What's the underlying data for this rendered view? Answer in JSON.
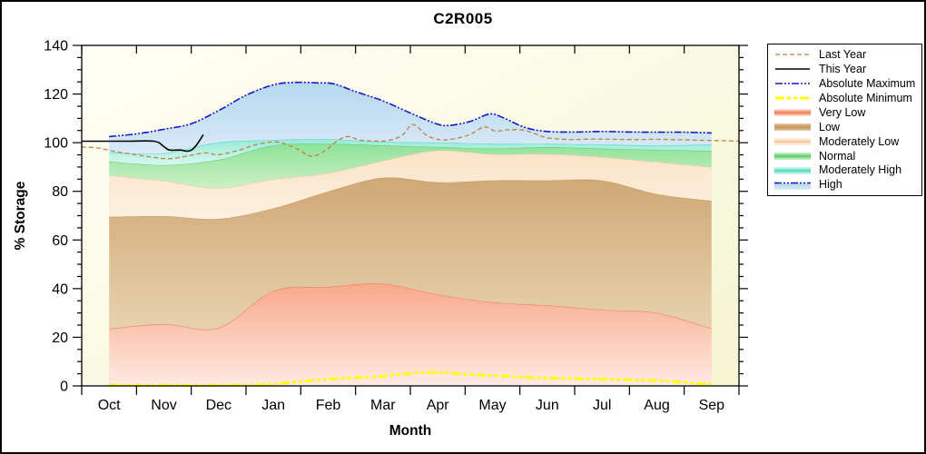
{
  "chart_data": {
    "type": "area",
    "title": "C2R005",
    "xlabel": "Month",
    "ylabel": "% Storage",
    "ylim": [
      0,
      140
    ],
    "ytick_major": 20,
    "ytick_minor": 5,
    "ytick_labels": [
      0,
      20,
      40,
      60,
      80,
      100,
      120,
      140
    ],
    "categories": [
      "Oct",
      "Nov",
      "Dec",
      "Jan",
      "Feb",
      "Mar",
      "Apr",
      "May",
      "Jun",
      "Jul",
      "Aug",
      "Sep"
    ],
    "plot_bg": {
      "top_left": "#fffff5",
      "bottom_right": "#f5f5d2"
    },
    "bands": [
      {
        "name": "Very Low",
        "lower": "zero",
        "upper": "very_low_top",
        "edge": "#ef8160",
        "fill_top": "#f9a98b",
        "fill_bottom": "#feeae2"
      },
      {
        "name": "Low",
        "lower": "very_low_top",
        "upper": "low_top",
        "edge": "#c7995f",
        "fill_top": "#cfa876",
        "fill_bottom": "#e7d2ad"
      },
      {
        "name": "Moderately Low",
        "lower": "low_top",
        "upper": "moderately_low_top",
        "edge": "#eec9a2",
        "fill_top": "#fbe3c8",
        "fill_bottom": "#fcf0e0"
      },
      {
        "name": "Normal",
        "lower": "moderately_low_top",
        "upper": "normal_top",
        "edge": "#63cc76",
        "fill_top": "#8fe29a",
        "fill_bottom": "#cdf0c6"
      },
      {
        "name": "Moderately High",
        "lower": "normal_top",
        "upper": "moderately_high_top",
        "edge": "#55dcc2",
        "fill_top": "#98ead6",
        "fill_bottom": "#d8f8f0"
      },
      {
        "name": "High",
        "lower": "moderately_high_top",
        "upper": "absolute_maximum",
        "edge": "none",
        "fill_top": "#b5d8f1",
        "fill_bottom": "#d9eaf8"
      }
    ],
    "series": {
      "zero": {
        "x": [
          0,
          11
        ],
        "v": [
          0,
          0
        ]
      },
      "very_low_top": {
        "x": [
          0,
          1,
          2,
          3,
          4,
          5,
          6,
          7,
          8,
          9,
          10,
          11
        ],
        "v": [
          23.5,
          25.4,
          23.9,
          39.0,
          40.7,
          42.0,
          37.6,
          34.4,
          33.1,
          31.3,
          30.0,
          23.6
        ]
      },
      "low_top": {
        "x": [
          0,
          1,
          2,
          3,
          4,
          5,
          6,
          7,
          8,
          9,
          10,
          11
        ],
        "v": [
          69.5,
          69.8,
          68.7,
          73.0,
          79.9,
          85.6,
          83.7,
          84.5,
          84.5,
          84.5,
          78.9,
          76.1
        ]
      },
      "moderately_low_top": {
        "x": [
          0,
          1,
          2,
          3,
          4,
          5,
          6,
          7,
          8,
          9,
          10,
          11
        ],
        "v": [
          86.6,
          84.3,
          81.4,
          85.0,
          87.5,
          92.6,
          96.8,
          95.3,
          95.4,
          94.1,
          92.1,
          90.0
        ]
      },
      "normal_top": {
        "x": [
          0,
          1,
          2,
          3,
          4,
          5,
          6,
          7,
          8,
          9,
          10,
          11
        ],
        "v": [
          92.3,
          90.8,
          93.0,
          98.9,
          99.5,
          98.9,
          98.2,
          97.6,
          98.2,
          97.6,
          97.1,
          96.6
        ]
      },
      "moderately_high_top": {
        "x": [
          0,
          1,
          2,
          3,
          4,
          5,
          6,
          7,
          8,
          9,
          10,
          11
        ],
        "v": [
          96.0,
          95.7,
          100.1,
          101.1,
          101.4,
          100.4,
          100.1,
          99.5,
          99.5,
          99.2,
          98.9,
          99.2
        ]
      },
      "absolute_maximum": {
        "x": [
          0,
          0.5,
          1,
          1.5,
          2,
          2.5,
          3,
          3.4,
          3.8,
          4.1,
          4.5,
          5,
          5.5,
          6,
          6.25,
          6.6,
          6.95,
          7.2,
          7.6,
          8,
          8.5,
          9,
          9.5,
          10,
          10.5,
          11
        ],
        "v": [
          102.5,
          103.6,
          105.5,
          107.8,
          113.2,
          119.5,
          123.8,
          124.8,
          124.6,
          124.2,
          121.0,
          117.2,
          112.2,
          107.6,
          107.2,
          108.8,
          111.8,
          110.2,
          106.2,
          104.6,
          104.4,
          104.6,
          104.4,
          104.3,
          104.3,
          104.0
        ]
      },
      "absolute_minimum": {
        "x": [
          0,
          0.5,
          1,
          1.5,
          2,
          2.5,
          3,
          3.5,
          4,
          4.5,
          5,
          5.5,
          6,
          6.5,
          7,
          7.5,
          8,
          8.5,
          9,
          9.5,
          10,
          10.4,
          10.8,
          11
        ],
        "v": [
          0.4,
          0.2,
          0.3,
          0.2,
          0.3,
          0.4,
          0.8,
          1.8,
          2.8,
          3.4,
          4.0,
          5.2,
          5.6,
          4.8,
          4.2,
          3.7,
          3.2,
          3.0,
          2.8,
          2.5,
          2.2,
          1.6,
          0.9,
          0.8
        ]
      },
      "last_year": {
        "x": [
          -0.5,
          -0.2,
          0.15,
          0.5,
          0.8,
          1.1,
          1.45,
          1.75,
          2.0,
          2.35,
          2.7,
          3.0,
          3.2,
          3.45,
          3.7,
          3.95,
          4.15,
          4.35,
          4.6,
          4.85,
          5.1,
          5.35,
          5.55,
          5.8,
          6.05,
          6.3,
          6.6,
          6.85,
          7.05,
          7.3,
          7.55,
          7.8,
          8.0,
          8.4,
          8.8,
          9.2,
          9.6,
          10.0,
          10.4,
          10.8,
          11.2,
          11.5
        ],
        "v": [
          98.2,
          97.8,
          96.2,
          95.0,
          94.0,
          93.4,
          94.6,
          95.8,
          95.1,
          96.8,
          99.3,
          100.3,
          99.6,
          97.2,
          94.4,
          96.8,
          100.5,
          102.5,
          101.0,
          100.7,
          100.9,
          103.0,
          107.5,
          103.0,
          101.2,
          101.6,
          103.5,
          106.5,
          104.8,
          105.3,
          105.2,
          103.5,
          102.0,
          101.3,
          101.5,
          101.4,
          101.3,
          101.4,
          101.2,
          101.0,
          100.8,
          100.7
        ]
      },
      "this_year": {
        "x": [
          -0.5,
          0.3,
          0.82,
          1.0,
          1.1,
          1.3,
          1.42,
          1.52,
          1.62,
          1.72
        ],
        "v": [
          100.6,
          100.6,
          100.6,
          98.4,
          97.0,
          97.0,
          96.5,
          97.2,
          99.8,
          103.3
        ]
      }
    },
    "lines": [
      {
        "name": "absolute_maximum",
        "color": "#1414cc",
        "width": 1.6,
        "dash": "8,2,2,2,2,2"
      },
      {
        "name": "last_year",
        "color": "#c08040",
        "width": 1.3,
        "dash": "5,3"
      },
      {
        "name": "this_year",
        "color": "#000000",
        "width": 1.6,
        "dash": ""
      },
      {
        "name": "absolute_minimum",
        "color": "#ffff00",
        "width": 3,
        "dash": "10,3,4,3,4,3"
      }
    ],
    "legend": {
      "items": [
        {
          "label": "Last Year",
          "type": "line",
          "color": "#c08040",
          "width": 1.3,
          "dash": "5,3"
        },
        {
          "label": "This Year",
          "type": "line",
          "color": "#000000",
          "width": 1.5,
          "dash": ""
        },
        {
          "label": "Absolute Maximum",
          "type": "line",
          "color": "#1414cc",
          "width": 1.5,
          "dash": "8,2,2,2,2,2"
        },
        {
          "label": "Absolute Minimum",
          "type": "line",
          "color": "#ffff00",
          "width": 3,
          "dash": "10,3,4,3,4,3"
        },
        {
          "label": "Very Low",
          "type": "band",
          "edge": "#ef8160",
          "top": "#f9a98b",
          "bottom": "#feeae2"
        },
        {
          "label": "Low",
          "type": "band",
          "edge": "#c7995f",
          "top": "#cfa876",
          "bottom": "#e7d2ad"
        },
        {
          "label": "Moderately Low",
          "type": "band",
          "edge": "#eec9a2",
          "top": "#fbe3c8",
          "bottom": "#fcf0e0"
        },
        {
          "label": "Normal",
          "type": "band",
          "edge": "#63cc76",
          "top": "#8fe29a",
          "bottom": "#cdf0c6"
        },
        {
          "label": "Moderately High",
          "type": "band",
          "edge": "#55dcc2",
          "top": "#98ead6",
          "bottom": "#d8f8f0"
        },
        {
          "label": "High",
          "type": "band_line",
          "edge": "#1414cc",
          "top": "#b5d8f1",
          "bottom": "#d9eaf8",
          "dash": "8,2,2,2,2,2"
        }
      ]
    }
  }
}
